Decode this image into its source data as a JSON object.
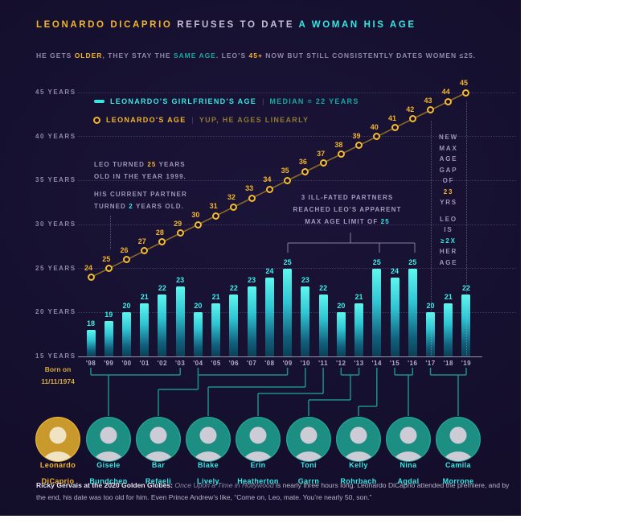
{
  "title": {
    "part1": "LEONARDO DICAPRIO",
    "part2": " REFUSES TO DATE ",
    "part3": "A WOMAN HIS AGE"
  },
  "subtitle": {
    "s1": "HE GETS ",
    "s2": "OLDER",
    "s3": ", THEY STAY THE ",
    "s4": "SAME AGE",
    "s5": ". LEO’S ",
    "s6": "45+",
    "s7": " NOW BUT STILL CONSISTENTLY DATES WOMEN ≤25."
  },
  "legend": {
    "girlfriend_label": "LEONARDO'S GIRLFRIEND'S AGE",
    "divider1": "|",
    "girlfriend_note": "MEDIAN = 22 YEARS",
    "leo_label": "LEONARDO'S AGE",
    "divider2": "|",
    "leo_note": "YUP, HE AGES LINEARLY"
  },
  "annotations": {
    "left": {
      "l1a": "LEO TURNED ",
      "l1b": "25",
      "l1c": " YEARS",
      "l2": "OLD IN THE YEAR 1999.",
      "l3": "HIS CURRENT PARTNER",
      "l4a": "TURNED ",
      "l4b": "2",
      "l4c": " YEARS OLD."
    },
    "middle": {
      "m1": "3 ILL-FATED PARTNERS",
      "m2": "REACHED LEO'S APPARENT",
      "m3a": "MAX AGE LIMIT OF ",
      "m3b": "25"
    },
    "right": {
      "words": [
        {
          "t": "NEW"
        },
        {
          "t": "MAX"
        },
        {
          "t": "AGE"
        },
        {
          "t": "GAP"
        },
        {
          "t": "OF"
        },
        {
          "t": "23",
          "c": "yellow"
        },
        {
          "t": "YRS"
        },
        {
          "t": "LEO",
          "gap": true
        },
        {
          "t": "IS"
        },
        {
          "t": "≥2X",
          "c": "cyan"
        },
        {
          "t": "HER"
        },
        {
          "t": "AGE"
        }
      ]
    }
  },
  "chart_data": {
    "type": "bar+line",
    "categories": [
      "'98",
      "'99",
      "'00",
      "'01",
      "'02",
      "'03",
      "'04",
      "'05",
      "'06",
      "'07",
      "'08",
      "'09",
      "'10",
      "'11",
      "'12",
      "'13",
      "'14",
      "'15",
      "'16",
      "'17",
      "'18",
      "'19"
    ],
    "series": [
      {
        "name": "LEONARDO'S GIRLFRIEND'S AGE",
        "type": "bar",
        "values": [
          18,
          19,
          20,
          21,
          22,
          23,
          20,
          21,
          22,
          23,
          24,
          25,
          23,
          22,
          20,
          21,
          25,
          24,
          25,
          20,
          21,
          22
        ]
      },
      {
        "name": "LEONARDO'S AGE",
        "type": "line",
        "values": [
          24,
          25,
          26,
          27,
          28,
          29,
          30,
          31,
          32,
          33,
          34,
          35,
          36,
          37,
          38,
          39,
          40,
          41,
          42,
          43,
          44,
          45
        ]
      }
    ],
    "yticks": [
      15,
      20,
      25,
      30,
      35,
      40,
      45
    ],
    "ytick_suffix": " YEARS",
    "ylim": [
      15,
      46
    ],
    "grid": "dotted-horizontal",
    "legend_position": "top-left",
    "median_girlfriend_age": 22,
    "max_age_gap_years": 23,
    "colors": {
      "bar_top": "#5ef6ee",
      "bar_bottom": "#0b4056",
      "bar_label": "#3ceee8",
      "line": "#8a6b22",
      "point": "#f5bc30",
      "point_label": "#f2b52c",
      "accent_yellow": "#f2b52c",
      "accent_cyan": "#35e8e2",
      "background": "#161030"
    },
    "ill_fated_years": [
      "'09",
      "'14",
      "'16"
    ],
    "gap_marker_years": [
      "'17",
      "'19"
    ]
  },
  "people": {
    "leo": {
      "born_line1": "Born on",
      "born_line2": "11/11/1974",
      "first": "Leonardo",
      "last": "DiCaprio"
    },
    "girlfriends": [
      {
        "first": "Gisele",
        "last": "Bundchen",
        "connector": {
          "type": "bracket",
          "from": 0,
          "to": 5,
          "dropX": 135
        }
      },
      {
        "first": "Bar",
        "last": "Refaeli",
        "connector": {
          "type": "bracket-elbow",
          "from": 6,
          "to": 11,
          "elbowY": 484
        }
      },
      {
        "first": "Blake",
        "last": "Lively",
        "connector": {
          "type": "elbow",
          "year": 12,
          "elbowY": 481
        }
      },
      {
        "first": "Erin",
        "last": "Heatherton",
        "connector": {
          "type": "elbow",
          "year": 13,
          "elbowY": 489
        }
      },
      {
        "first": "Toni",
        "last": "Garrn",
        "connector": {
          "type": "bracket-stem",
          "from": 14,
          "to": 15,
          "stemX": 436,
          "elbowY": 497
        }
      },
      {
        "first": "Kelly",
        "last": "Rohrbach",
        "connector": {
          "type": "elbow",
          "year": 16,
          "elbowY": 505
        }
      },
      {
        "first": "Nina",
        "last": "Agdal",
        "connector": {
          "type": "bracket",
          "from": 17,
          "to": 18,
          "dropX": 508
        }
      },
      {
        "first": "Camila",
        "last": "Morrone",
        "connector": {
          "type": "bracket",
          "from": 19,
          "to": 21,
          "dropX": 570
        }
      }
    ]
  },
  "footer": {
    "lead": "Ricky Gervais at the 2020 Golden Globes:",
    "movie": " Once Upon a Time in Hollywood",
    "rest": " is nearly three hours long. Leonardo DiCaprio attended the premiere, and by the end, his date was too old for him.  Even Prince Andrew’s like, “Come on, Leo, mate. You’re nearly 50, son.”"
  }
}
